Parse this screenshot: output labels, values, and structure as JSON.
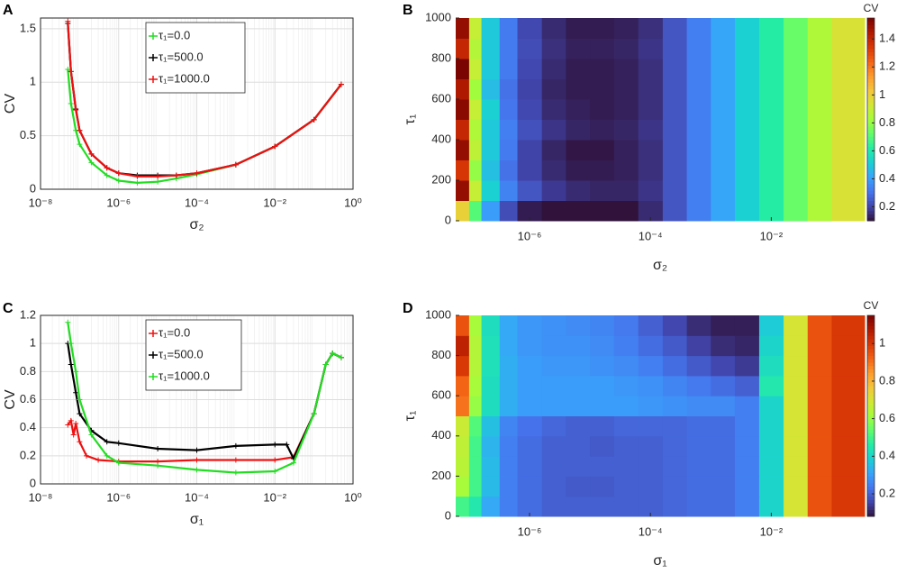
{
  "chart_data": [
    {
      "type": "line",
      "panel": "A",
      "xlabel": "σ₂",
      "ylabel": "CV",
      "xscale": "log",
      "grid": true,
      "minor_grid": true,
      "xlim": [
        1e-08,
        1
      ],
      "xticks": [
        {
          "value": 1e-08,
          "label": "10⁻⁸"
        },
        {
          "value": 1e-06,
          "label": "10⁻⁶"
        },
        {
          "value": 0.0001,
          "label": "10⁻⁴"
        },
        {
          "value": 0.01,
          "label": "10⁻²"
        },
        {
          "value": 1,
          "label": "10⁰"
        }
      ],
      "ylim": [
        0,
        1.6
      ],
      "yticks": [
        0,
        0.5,
        1,
        1.5
      ],
      "legend": "top-center",
      "series": [
        {
          "name": "τ₁=0.0",
          "color": "#22dd22",
          "x": [
            5e-08,
            6e-08,
            8e-08,
            1e-07,
            2e-07,
            5e-07,
            1e-06,
            3e-06,
            1e-05,
            3e-05,
            0.0001,
            0.001,
            0.01,
            0.1,
            0.5
          ],
          "values": [
            1.12,
            0.8,
            0.55,
            0.42,
            0.25,
            0.13,
            0.08,
            0.06,
            0.07,
            0.1,
            0.14,
            0.23,
            0.4,
            0.65,
            0.98
          ]
        },
        {
          "name": "τ₁=500.0",
          "color": "#000000",
          "x": [
            5e-08,
            6e-08,
            8e-08,
            1e-07,
            2e-07,
            5e-07,
            1e-06,
            3e-06,
            1e-05,
            3e-05,
            0.0001,
            0.001,
            0.01,
            0.1,
            0.5
          ],
          "values": [
            1.55,
            1.1,
            0.75,
            0.55,
            0.33,
            0.2,
            0.15,
            0.13,
            0.13,
            0.13,
            0.15,
            0.23,
            0.4,
            0.65,
            0.98
          ]
        },
        {
          "name": "τ₁=1000.0",
          "color": "#ee1111",
          "x": [
            5e-08,
            6e-08,
            8e-08,
            1e-07,
            2e-07,
            5e-07,
            1e-06,
            3e-06,
            1e-05,
            3e-05,
            0.0001,
            0.001,
            0.01,
            0.1,
            0.5
          ],
          "values": [
            1.57,
            1.1,
            0.74,
            0.55,
            0.33,
            0.2,
            0.15,
            0.12,
            0.12,
            0.13,
            0.15,
            0.23,
            0.4,
            0.65,
            0.98
          ]
        }
      ]
    },
    {
      "type": "heatmap",
      "panel": "B",
      "xlabel": "σ₂",
      "ylabel": "τ₁",
      "xscale": "log",
      "xlim": [
        6e-08,
        0.35
      ],
      "xticks": [
        {
          "value": 1e-06,
          "label": "10⁻⁶"
        },
        {
          "value": 0.0001,
          "label": "10⁻⁴"
        },
        {
          "value": 0.01,
          "label": "10⁻²"
        }
      ],
      "ylim": [
        0,
        1000
      ],
      "yticks": [
        0,
        200,
        400,
        600,
        800,
        1000
      ],
      "xbins": [
        6e-08,
        1e-07,
        1.6e-07,
        3.2e-07,
        6.3e-07,
        1.6e-06,
        4e-06,
        1e-05,
        2.5e-05,
        6.3e-05,
        0.00016,
        0.0004,
        0.001,
        0.0025,
        0.0063,
        0.016,
        0.04,
        0.1,
        0.35
      ],
      "ybins": [
        0,
        100,
        200,
        300,
        400,
        500,
        600,
        700,
        800,
        900,
        1000
      ],
      "values": [
        [
          1.0,
          0.7,
          0.4,
          0.22,
          0.12,
          0.09,
          0.08,
          0.08,
          0.1,
          0.15,
          0.24,
          0.33,
          0.42,
          0.52,
          0.62,
          0.73,
          0.85,
          0.95
        ],
        [
          1.5,
          0.9,
          0.52,
          0.34,
          0.24,
          0.18,
          0.15,
          0.14,
          0.14,
          0.17,
          0.24,
          0.33,
          0.42,
          0.52,
          0.62,
          0.73,
          0.85,
          0.95
        ],
        [
          1.35,
          0.8,
          0.48,
          0.3,
          0.2,
          0.15,
          0.12,
          0.12,
          0.13,
          0.16,
          0.24,
          0.33,
          0.42,
          0.52,
          0.62,
          0.73,
          0.85,
          0.95
        ],
        [
          1.5,
          0.88,
          0.5,
          0.32,
          0.2,
          0.14,
          0.11,
          0.11,
          0.13,
          0.16,
          0.24,
          0.33,
          0.42,
          0.52,
          0.62,
          0.73,
          0.85,
          0.95
        ],
        [
          1.4,
          0.85,
          0.5,
          0.33,
          0.23,
          0.17,
          0.14,
          0.13,
          0.14,
          0.17,
          0.24,
          0.33,
          0.42,
          0.52,
          0.62,
          0.73,
          0.85,
          0.95
        ],
        [
          1.52,
          0.9,
          0.52,
          0.31,
          0.21,
          0.15,
          0.13,
          0.12,
          0.13,
          0.16,
          0.24,
          0.33,
          0.42,
          0.52,
          0.62,
          0.73,
          0.85,
          0.95
        ],
        [
          1.45,
          0.82,
          0.47,
          0.3,
          0.2,
          0.14,
          0.12,
          0.12,
          0.13,
          0.16,
          0.24,
          0.33,
          0.42,
          0.52,
          0.62,
          0.73,
          0.85,
          0.95
        ],
        [
          1.55,
          0.9,
          0.5,
          0.32,
          0.21,
          0.15,
          0.12,
          0.12,
          0.13,
          0.16,
          0.24,
          0.33,
          0.42,
          0.52,
          0.62,
          0.73,
          0.85,
          0.95
        ],
        [
          1.4,
          0.86,
          0.5,
          0.32,
          0.22,
          0.16,
          0.13,
          0.13,
          0.14,
          0.17,
          0.24,
          0.33,
          0.42,
          0.52,
          0.62,
          0.73,
          0.85,
          0.95
        ],
        [
          1.5,
          0.9,
          0.5,
          0.32,
          0.21,
          0.15,
          0.12,
          0.12,
          0.13,
          0.16,
          0.24,
          0.33,
          0.42,
          0.52,
          0.62,
          0.73,
          0.85,
          0.95
        ]
      ],
      "colorbar": {
        "label": "CV",
        "clim": [
          0.1,
          1.55
        ],
        "ticks": [
          0.2,
          0.4,
          0.6,
          0.8,
          1,
          1.2,
          1.4
        ]
      },
      "colormap": [
        "#30123b",
        "#4145ab",
        "#4675ed",
        "#39a2fc",
        "#1bcfd4",
        "#24eca6",
        "#61fc6c",
        "#a4fc3b",
        "#d1e834",
        "#f3c63a",
        "#fe9b2d",
        "#f36315",
        "#d93806",
        "#b11901",
        "#7a0402"
      ]
    },
    {
      "type": "line",
      "panel": "C",
      "xlabel": "σ₁",
      "ylabel": "CV",
      "xscale": "log",
      "grid": true,
      "minor_grid": true,
      "xlim": [
        1e-08,
        1
      ],
      "xticks": [
        {
          "value": 1e-08,
          "label": "10⁻⁸"
        },
        {
          "value": 1e-06,
          "label": "10⁻⁶"
        },
        {
          "value": 0.0001,
          "label": "10⁻⁴"
        },
        {
          "value": 0.01,
          "label": "10⁻²"
        },
        {
          "value": 1,
          "label": "10⁰"
        }
      ],
      "ylim": [
        0,
        1.2
      ],
      "yticks": [
        0,
        0.2,
        0.4,
        0.6,
        0.8,
        1,
        1.2
      ],
      "legend": "top-center",
      "series": [
        {
          "name": "τ₁=0.0",
          "color": "#ee1111",
          "x": [
            5e-08,
            6e-08,
            7e-08,
            8e-08,
            1e-07,
            1.5e-07,
            3e-07,
            1e-06,
            1e-05,
            0.0001,
            0.001,
            0.01,
            0.03,
            0.1,
            0.2,
            0.3,
            0.5
          ],
          "values": [
            0.42,
            0.45,
            0.35,
            0.43,
            0.3,
            0.2,
            0.17,
            0.16,
            0.16,
            0.17,
            0.17,
            0.17,
            0.19,
            0.5,
            0.85,
            0.93,
            0.9
          ]
        },
        {
          "name": "τ₁=500.0",
          "color": "#000000",
          "x": [
            5e-08,
            6e-08,
            8e-08,
            1e-07,
            2e-07,
            5e-07,
            1e-06,
            1e-05,
            0.0001,
            0.001,
            0.01,
            0.02,
            0.03,
            0.1,
            0.2,
            0.3,
            0.5
          ],
          "values": [
            1.0,
            0.85,
            0.65,
            0.5,
            0.38,
            0.3,
            0.29,
            0.25,
            0.24,
            0.27,
            0.28,
            0.28,
            0.18,
            0.5,
            0.85,
            0.93,
            0.9
          ]
        },
        {
          "name": "τ₁=1000.0",
          "color": "#22dd22",
          "x": [
            5e-08,
            6e-08,
            8e-08,
            1e-07,
            2e-07,
            5e-07,
            1e-06,
            1e-05,
            0.0001,
            0.001,
            0.01,
            0.03,
            0.1,
            0.2,
            0.3,
            0.5
          ],
          "values": [
            1.15,
            1.0,
            0.8,
            0.6,
            0.35,
            0.2,
            0.15,
            0.13,
            0.1,
            0.08,
            0.09,
            0.15,
            0.5,
            0.85,
            0.93,
            0.9
          ]
        }
      ]
    },
    {
      "type": "heatmap",
      "panel": "D",
      "xlabel": "σ₁",
      "ylabel": "τ₁",
      "xscale": "log",
      "xlim": [
        6e-08,
        0.35
      ],
      "xticks": [
        {
          "value": 1e-06,
          "label": "10⁻⁶"
        },
        {
          "value": 0.0001,
          "label": "10⁻⁴"
        },
        {
          "value": 0.01,
          "label": "10⁻²"
        }
      ],
      "ylim": [
        0,
        1000
      ],
      "yticks": [
        0,
        200,
        400,
        600,
        800,
        1000
      ],
      "xbins": [
        6e-08,
        1e-07,
        1.6e-07,
        3.2e-07,
        6.3e-07,
        1.6e-06,
        4e-06,
        1e-05,
        2.5e-05,
        6.3e-05,
        0.00016,
        0.0004,
        0.001,
        0.0025,
        0.0063,
        0.016,
        0.04,
        0.1,
        0.35
      ],
      "ybins": [
        0,
        100,
        200,
        300,
        400,
        500,
        600,
        700,
        800,
        900,
        1000
      ],
      "values": [
        [
          0.5,
          0.45,
          0.32,
          0.25,
          0.22,
          0.2,
          0.2,
          0.2,
          0.2,
          0.2,
          0.21,
          0.22,
          0.22,
          0.25,
          0.4,
          0.7,
          0.95,
          1.0
        ],
        [
          0.62,
          0.5,
          0.35,
          0.25,
          0.22,
          0.2,
          0.19,
          0.19,
          0.2,
          0.2,
          0.21,
          0.22,
          0.22,
          0.25,
          0.4,
          0.7,
          0.95,
          1.0
        ],
        [
          0.65,
          0.5,
          0.35,
          0.25,
          0.22,
          0.2,
          0.2,
          0.2,
          0.2,
          0.2,
          0.21,
          0.22,
          0.22,
          0.25,
          0.4,
          0.7,
          0.95,
          1.0
        ],
        [
          0.66,
          0.5,
          0.34,
          0.25,
          0.22,
          0.2,
          0.2,
          0.19,
          0.2,
          0.2,
          0.21,
          0.22,
          0.22,
          0.25,
          0.4,
          0.7,
          0.95,
          1.0
        ],
        [
          0.68,
          0.52,
          0.36,
          0.26,
          0.23,
          0.21,
          0.2,
          0.2,
          0.21,
          0.21,
          0.21,
          0.22,
          0.22,
          0.25,
          0.4,
          0.7,
          0.95,
          1.0
        ],
        [
          0.9,
          0.6,
          0.42,
          0.33,
          0.3,
          0.3,
          0.3,
          0.3,
          0.3,
          0.29,
          0.28,
          0.27,
          0.27,
          0.25,
          0.4,
          0.7,
          0.95,
          1.0
        ],
        [
          0.92,
          0.62,
          0.42,
          0.33,
          0.3,
          0.3,
          0.3,
          0.3,
          0.29,
          0.28,
          0.26,
          0.24,
          0.22,
          0.2,
          0.45,
          0.7,
          0.95,
          1.0
        ],
        [
          1.0,
          0.64,
          0.43,
          0.33,
          0.3,
          0.29,
          0.29,
          0.28,
          0.27,
          0.25,
          0.22,
          0.19,
          0.16,
          0.14,
          0.42,
          0.7,
          0.95,
          1.0
        ],
        [
          1.05,
          0.64,
          0.43,
          0.32,
          0.29,
          0.28,
          0.28,
          0.27,
          0.25,
          0.22,
          0.19,
          0.15,
          0.12,
          0.11,
          0.4,
          0.7,
          0.95,
          1.0
        ],
        [
          0.95,
          0.62,
          0.42,
          0.32,
          0.29,
          0.28,
          0.27,
          0.26,
          0.24,
          0.2,
          0.16,
          0.12,
          0.1,
          0.1,
          0.38,
          0.7,
          0.95,
          1.0
        ]
      ],
      "colorbar": {
        "label": "CV",
        "clim": [
          0.08,
          1.15
        ],
        "ticks": [
          0.2,
          0.4,
          0.6,
          0.8,
          1
        ]
      },
      "colormap": [
        "#30123b",
        "#4145ab",
        "#4675ed",
        "#39a2fc",
        "#1bcfd4",
        "#24eca6",
        "#61fc6c",
        "#a4fc3b",
        "#d1e834",
        "#f3c63a",
        "#fe9b2d",
        "#f36315",
        "#d93806",
        "#b11901",
        "#7a0402"
      ]
    }
  ]
}
